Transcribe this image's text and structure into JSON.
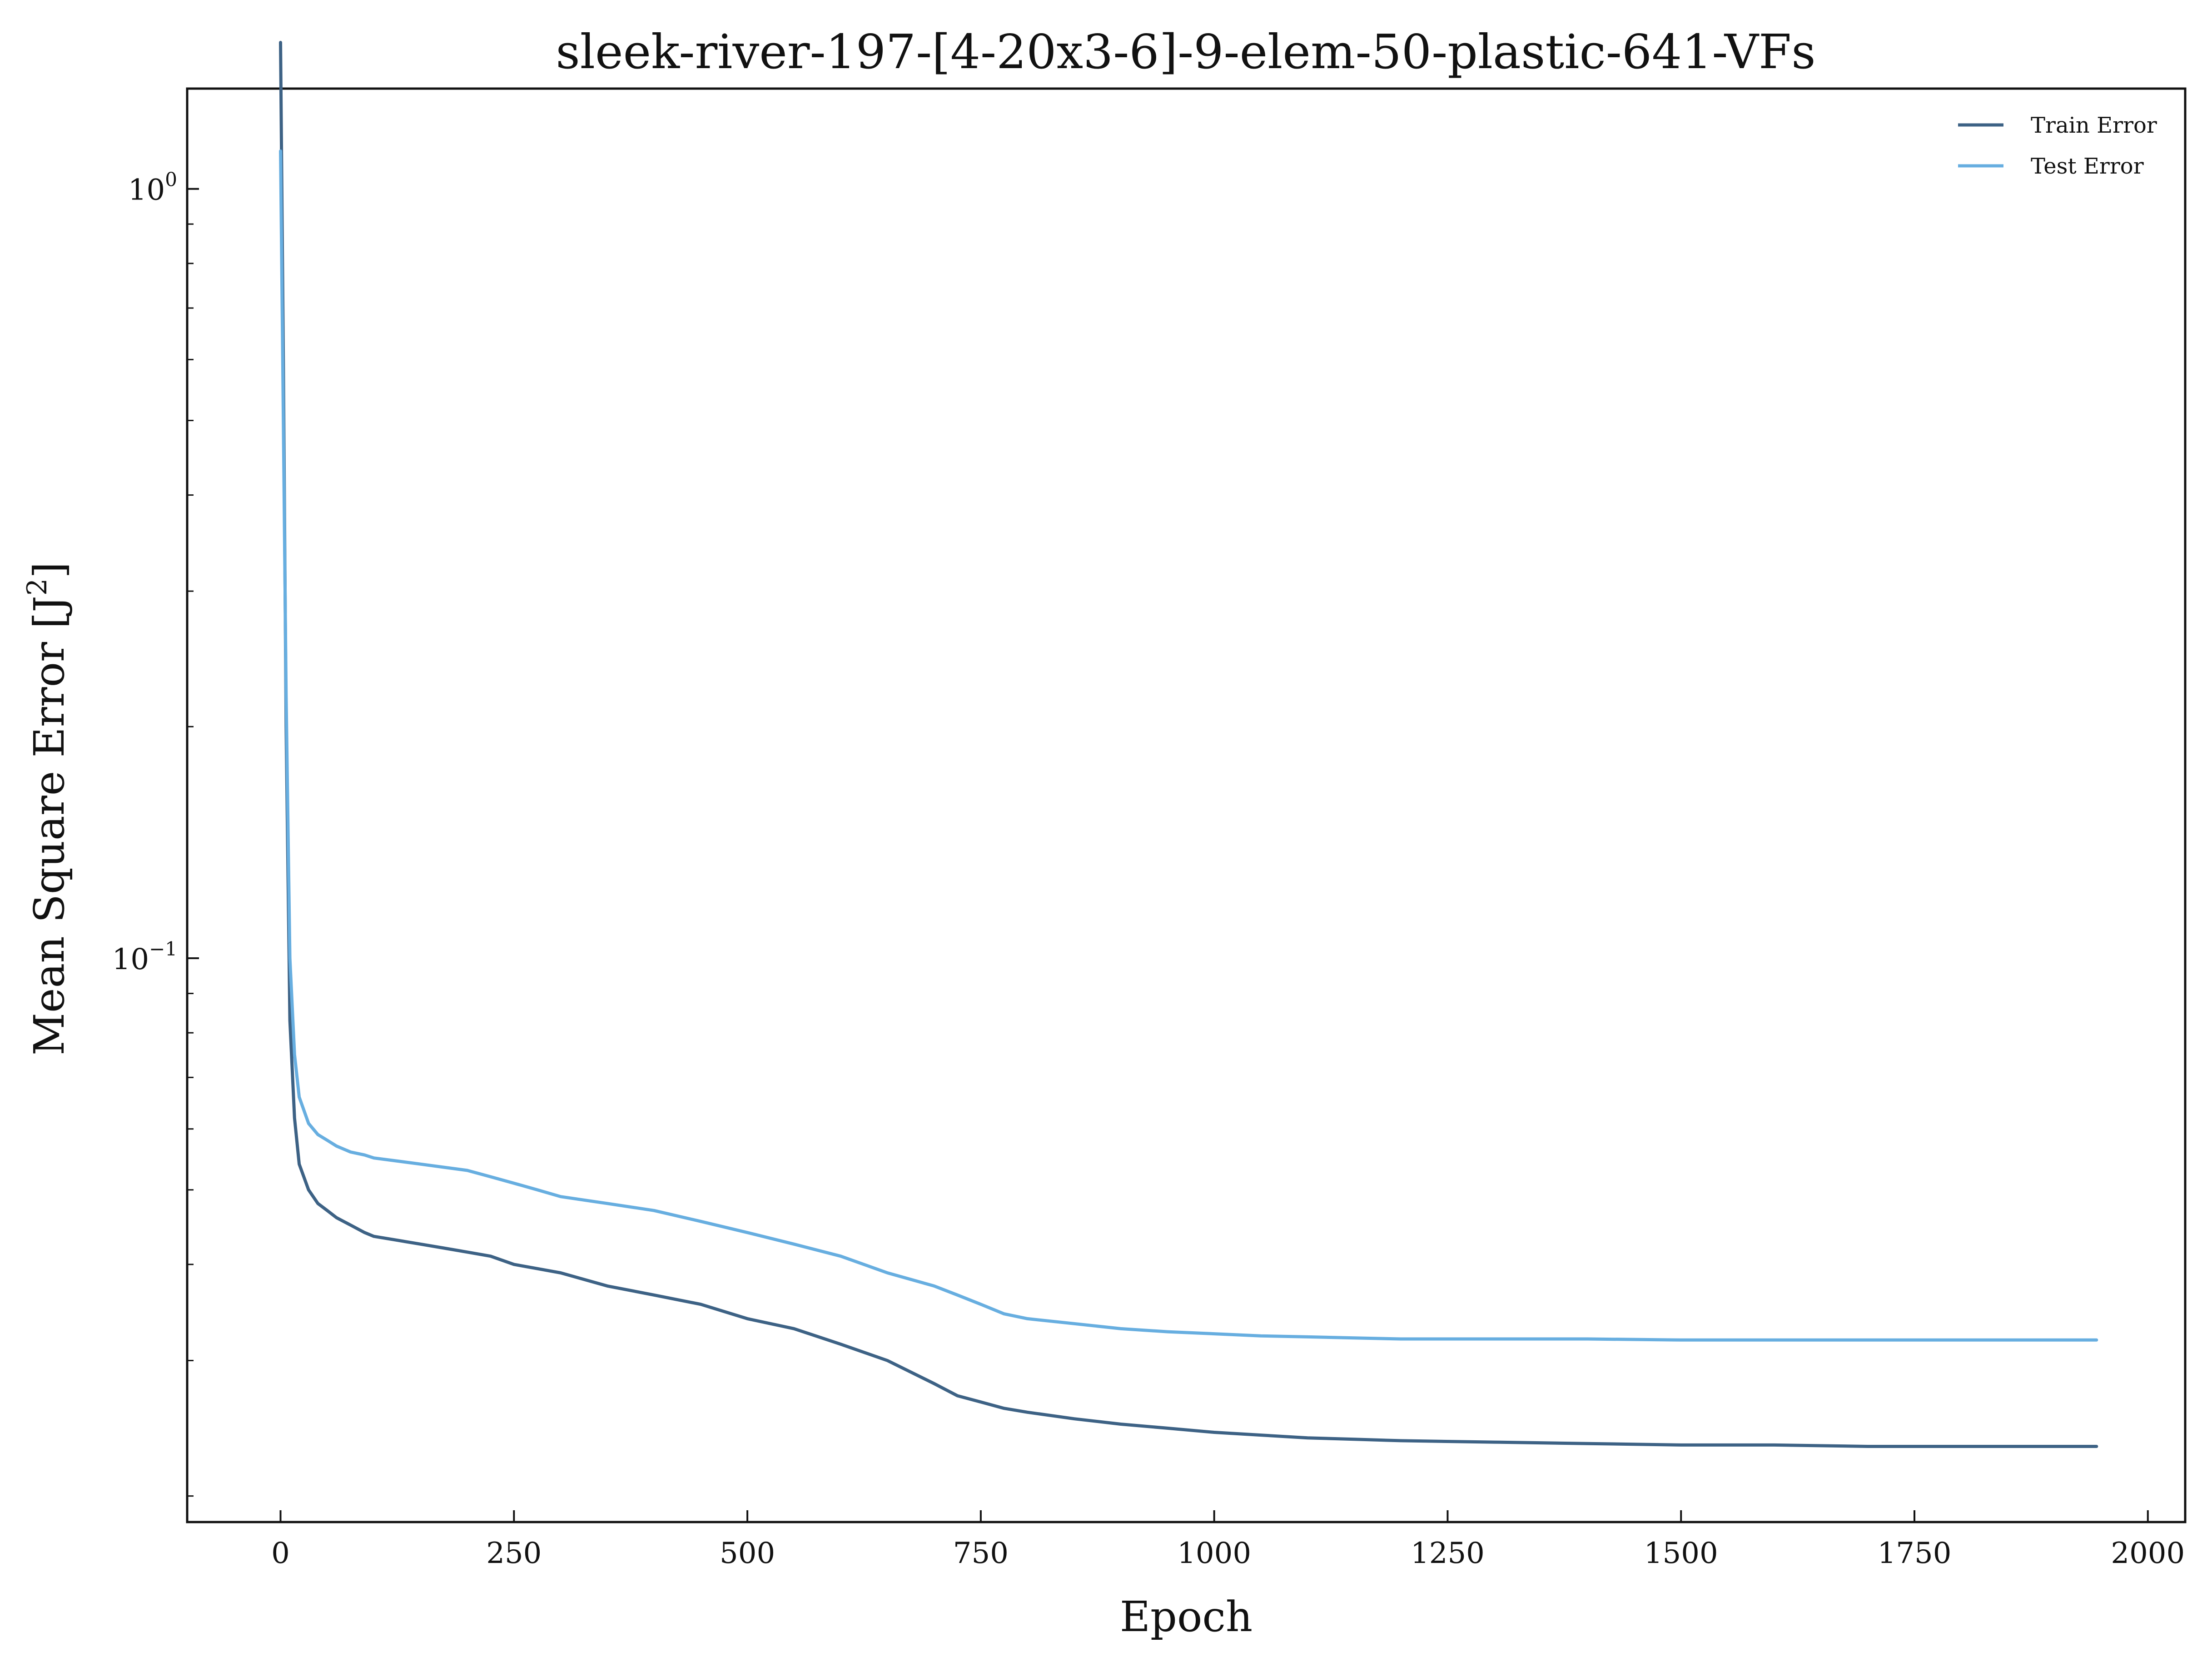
{
  "chart_data": {
    "type": "line",
    "title": "sleek-river-197-[4-20x3-6]-9-elem-50-plastic-641-VFs",
    "xlabel": "Epoch",
    "ylabel_main": "Mean Square Error [J",
    "ylabel_sup": "2",
    "ylabel_end": "]",
    "yscale": "log",
    "xlim": [
      -100,
      2040
    ],
    "ylim": [
      0.0185,
      1.35
    ],
    "xticks": [
      0,
      250,
      500,
      750,
      1000,
      1250,
      1500,
      1750,
      2000
    ],
    "xtick_labels": [
      "0",
      "250",
      "500",
      "750",
      "1000",
      "1250",
      "1500",
      "1750",
      "2000"
    ],
    "yticks": [
      {
        "value": 1.0,
        "base": "10",
        "exp": "0"
      },
      {
        "value": 0.1,
        "base": "10",
        "exp": "−1"
      }
    ],
    "grid": false,
    "legend_position": "top-right",
    "series": [
      {
        "name": "Train Error",
        "color": "#3d6285",
        "x": [
          0,
          3,
          6,
          10,
          15,
          20,
          30,
          40,
          50,
          60,
          75,
          90,
          100,
          125,
          150,
          175,
          200,
          225,
          250,
          275,
          300,
          350,
          400,
          450,
          500,
          550,
          600,
          650,
          700,
          725,
          750,
          775,
          800,
          850,
          900,
          950,
          1000,
          1050,
          1100,
          1150,
          1200,
          1300,
          1400,
          1500,
          1600,
          1700,
          1800,
          1900,
          1945
        ],
        "y": [
          1.55,
          0.6,
          0.2,
          0.083,
          0.062,
          0.054,
          0.05,
          0.048,
          0.047,
          0.046,
          0.045,
          0.044,
          0.0435,
          0.043,
          0.0425,
          0.042,
          0.0415,
          0.041,
          0.04,
          0.0395,
          0.039,
          0.0375,
          0.0365,
          0.0355,
          0.034,
          0.033,
          0.0315,
          0.03,
          0.028,
          0.027,
          0.0265,
          0.026,
          0.0257,
          0.0252,
          0.0248,
          0.0245,
          0.0242,
          0.024,
          0.0238,
          0.0237,
          0.0236,
          0.0235,
          0.0234,
          0.0233,
          0.0233,
          0.0232,
          0.0232,
          0.0232,
          0.0232
        ]
      },
      {
        "name": "Test Error",
        "color": "#67aee0",
        "x": [
          0,
          3,
          6,
          10,
          15,
          20,
          30,
          40,
          50,
          60,
          75,
          90,
          100,
          125,
          150,
          175,
          200,
          225,
          250,
          275,
          300,
          350,
          400,
          450,
          500,
          550,
          600,
          650,
          700,
          725,
          750,
          775,
          800,
          850,
          900,
          950,
          1000,
          1050,
          1100,
          1150,
          1200,
          1300,
          1400,
          1500,
          1600,
          1700,
          1800,
          1900,
          1945
        ],
        "y": [
          1.12,
          0.5,
          0.22,
          0.1,
          0.075,
          0.066,
          0.061,
          0.059,
          0.058,
          0.057,
          0.056,
          0.0555,
          0.055,
          0.0545,
          0.054,
          0.0535,
          0.053,
          0.052,
          0.051,
          0.05,
          0.049,
          0.048,
          0.047,
          0.0455,
          0.044,
          0.0425,
          0.041,
          0.039,
          0.0375,
          0.0365,
          0.0355,
          0.0345,
          0.034,
          0.0335,
          0.033,
          0.0327,
          0.0325,
          0.0323,
          0.0322,
          0.0321,
          0.032,
          0.032,
          0.032,
          0.0319,
          0.0319,
          0.0319,
          0.0319,
          0.0319,
          0.0319
        ]
      }
    ]
  }
}
